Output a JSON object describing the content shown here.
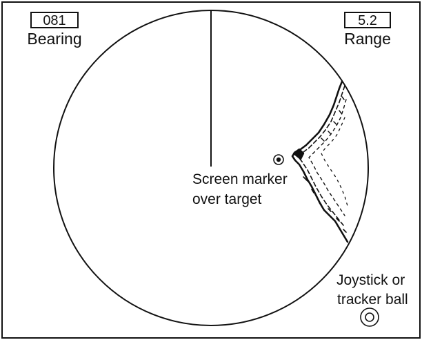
{
  "bearing": {
    "value": "081",
    "label": "Bearing"
  },
  "range": {
    "value": "5.2",
    "label": "Range"
  },
  "screen_marker": {
    "line1": "Screen marker",
    "line2": "over target"
  },
  "joystick": {
    "line1": "Joystick or",
    "line2": "tracker ball"
  },
  "colors": {
    "ink": "#111111",
    "background": "#ffffff"
  }
}
